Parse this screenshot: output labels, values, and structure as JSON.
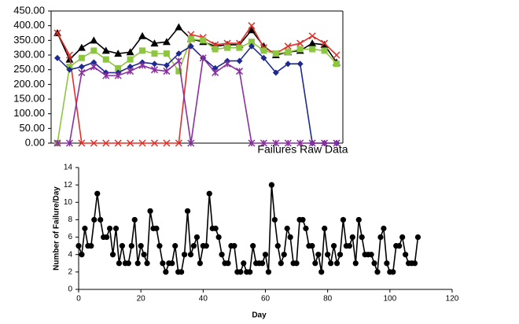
{
  "chart_data": [
    {
      "type": "line",
      "xlabel": "Failures Raw Data",
      "categories": [
        null,
        null,
        null,
        null,
        null,
        null,
        null,
        null,
        null,
        null,
        null,
        null,
        null,
        null,
        null,
        null,
        null,
        null,
        null,
        null,
        null,
        null,
        null,
        null
      ],
      "ylim": [
        0,
        450
      ],
      "yticks": [
        {
          "value": 0,
          "label": "0.00"
        },
        {
          "value": 50,
          "label": "50.00"
        },
        {
          "value": 100,
          "label": "100.00"
        },
        {
          "value": 150,
          "label": "150.00"
        },
        {
          "value": 200,
          "label": "200.00"
        },
        {
          "value": 250,
          "label": "250.00"
        },
        {
          "value": 300,
          "label": "300.00"
        },
        {
          "value": 350,
          "label": "350.00"
        },
        {
          "value": 400,
          "label": "400.00"
        },
        {
          "value": 450,
          "label": "450.00"
        }
      ],
      "series": [
        {
          "color": "#000000",
          "marker": "triangle",
          "values": [
            375,
            285,
            325,
            350,
            315,
            305,
            310,
            365,
            340,
            345,
            395,
            355,
            345,
            330,
            335,
            335,
            385,
            330,
            300,
            310,
            315,
            340,
            335,
            275
          ]
        },
        {
          "color": "#e0302a",
          "marker": "x",
          "values": [
            375,
            300,
            0,
            0,
            0,
            0,
            0,
            0,
            0,
            0,
            0,
            370,
            360,
            335,
            340,
            340,
            400,
            325,
            305,
            330,
            340,
            365,
            340,
            300
          ]
        },
        {
          "color": "#8dc63f",
          "marker": "square",
          "values": [
            0,
            260,
            290,
            315,
            285,
            255,
            285,
            315,
            305,
            305,
            245,
            355,
            350,
            320,
            325,
            325,
            345,
            315,
            305,
            310,
            320,
            320,
            315,
            270
          ]
        },
        {
          "color": "#1f2a8f",
          "marker": "diamond",
          "values": [
            290,
            250,
            260,
            275,
            240,
            240,
            260,
            275,
            270,
            265,
            305,
            330,
            290,
            255,
            280,
            280,
            330,
            290,
            240,
            270,
            270,
            0,
            0,
            0
          ]
        },
        {
          "color": "#8a2fa0",
          "marker": "star",
          "values": [
            0,
            0,
            240,
            260,
            230,
            230,
            245,
            265,
            250,
            245,
            280,
            0,
            290,
            240,
            270,
            245,
            0,
            0,
            0,
            0,
            0,
            0,
            0,
            0
          ]
        }
      ]
    },
    {
      "type": "line",
      "xlabel": "Day",
      "ylabel": "Number of Failure/Day",
      "color": "#000000",
      "xlim": [
        0,
        120
      ],
      "xticks": [
        0,
        20,
        40,
        60,
        80,
        100,
        120
      ],
      "ylim": [
        0,
        14
      ],
      "yticks": [
        0,
        2,
        4,
        6,
        8,
        10,
        12,
        14
      ],
      "x": [
        0,
        1,
        2,
        3,
        4,
        5,
        6,
        7,
        8,
        9,
        10,
        11,
        12,
        13,
        14,
        15,
        16,
        17,
        18,
        19,
        20,
        21,
        22,
        23,
        24,
        25,
        26,
        27,
        28,
        29,
        30,
        31,
        32,
        33,
        34,
        35,
        36,
        37,
        38,
        39,
        40,
        41,
        42,
        43,
        44,
        45,
        46,
        47,
        48,
        49,
        50,
        51,
        52,
        53,
        54,
        55,
        56,
        57,
        58,
        59,
        60,
        61,
        62,
        63,
        64,
        65,
        66,
        67,
        68,
        69,
        70,
        71,
        72,
        73,
        74,
        75,
        76,
        77,
        78,
        79,
        80,
        81,
        82,
        83,
        84,
        85,
        86,
        87,
        88,
        89,
        90,
        91,
        92,
        93,
        94,
        95,
        96,
        97,
        98,
        99,
        100,
        101,
        102,
        103,
        104,
        105,
        106,
        107,
        108,
        109
      ],
      "values": [
        5,
        4,
        7,
        5,
        5,
        8,
        11,
        8,
        6,
        6,
        7,
        4,
        7,
        3,
        5,
        3,
        3,
        5,
        8,
        3,
        5,
        4,
        3,
        9,
        7,
        7,
        5,
        3,
        2,
        3,
        3,
        5,
        2,
        2,
        4,
        9,
        4,
        5,
        6,
        3,
        5,
        5,
        11,
        7,
        7,
        6,
        4,
        3,
        3,
        5,
        5,
        2,
        2,
        3,
        2,
        2,
        5,
        3,
        3,
        3,
        4,
        2,
        12,
        8,
        5,
        3,
        4,
        7,
        6,
        3,
        3,
        8,
        8,
        7,
        5,
        5,
        3,
        4,
        2,
        7,
        4,
        3,
        5,
        3,
        4,
        8,
        5,
        5,
        6,
        3,
        8,
        6,
        4,
        4,
        4,
        3,
        2,
        6,
        7,
        3,
        2,
        2,
        5,
        5,
        6,
        4,
        3,
        3,
        3,
        6
      ]
    }
  ]
}
